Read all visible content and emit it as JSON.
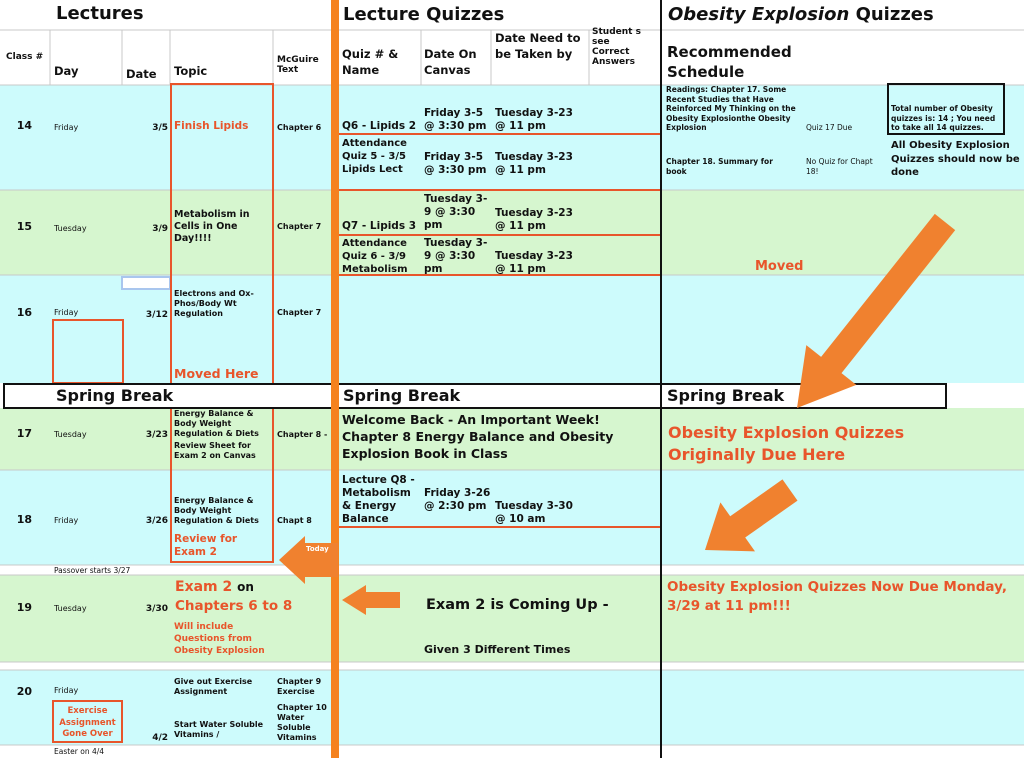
{
  "sections": {
    "lectures": "Lectures",
    "quizzes": "Lecture Quizzes",
    "obesity_italic": "Obesity Explosion",
    "obesity_rest": "Quizzes"
  },
  "headers": {
    "class_no": "Class #",
    "day": "Day",
    "date": "Date",
    "topic": "Topic",
    "text": "McGuire Text",
    "quiz_name": "Quiz # & Name",
    "canvas_date": "Date On Canvas",
    "due_date": "Date Need to be Taken by",
    "answers": "Student s see Correct Answers",
    "schedule": "Recommended Schedule"
  },
  "rows": [
    {
      "class": "14",
      "day": "Friday",
      "date": "3/5",
      "topic": "Finish Lipids",
      "text": "Chapter 6",
      "quizzes": [
        {
          "name": "Q6 - Lipids 2",
          "canvas": "Friday 3-5 @ 3:30 pm",
          "due": "Tuesday 3-23 @ 11 pm"
        },
        {
          "name": "Attendance Quiz 5 - 3/5 Lipids Lect",
          "canvas": "Friday 3-5 @ 3:30 pm",
          "due": "Tuesday 3-23 @ 11 pm"
        }
      ],
      "schedule": {
        "readings": "Readings: Chapter 17.  Some Recent Studies that Have Reinforced My Thinking on the Obesity Explosionthe Obesity Explosion",
        "quiz_due": "Quiz 17 Due",
        "total_note": "Total number of Obesity quizzes is: 14 ; You need to take all 14 quizzes.",
        "chapter18": "Chapter 18.  Summary for book",
        "no_quiz": "No Quiz for Chapt 18!",
        "all_done": "All Obesity Explosion Quizzes should now be done"
      }
    },
    {
      "class": "15",
      "day": "Tuesday",
      "date": "3/9",
      "topic": "Metabolism in Cells in One Day!!!!",
      "text": "Chapter 7",
      "quizzes": [
        {
          "name": "Q7 - Lipids 3",
          "canvas": "Tuesday 3-9 @ 3:30 pm",
          "due": "Tuesday 3-23 @ 11 pm"
        },
        {
          "name": "Attendance Quiz 6 - 3/9 Metabolism",
          "canvas": "Tuesday 3-9 @ 3:30 pm",
          "due": "Tuesday 3-23 @ 11 pm"
        }
      ],
      "schedule_note": "Moved"
    },
    {
      "class": "16",
      "day": "Friday",
      "date": "3/12",
      "topic": "Electrons and Ox-Phos/Body Wt Regulation",
      "text": "Chapter 7",
      "note": "Moved Here"
    },
    {
      "break_labels": [
        "Spring Break",
        "Spring Break",
        "Spring Break"
      ]
    },
    {
      "class": "17",
      "day": "Tuesday",
      "date": "3/23",
      "topic": "Energy Balance & Body Weight Regulation & Diets",
      "topic_note": "Review Sheet for Exam 2 on Canvas",
      "text": "Chapter 8 -",
      "quiz_note": "Welcome Back - An Important Week! Chapter 8 Energy Balance and Obesity Explosion Book in Class",
      "schedule_note": "Obesity Explosion Quizzes Originally Due Here"
    },
    {
      "class": "18",
      "day": "Friday",
      "date": "3/26",
      "topic": "Energy Balance & Body Weight Regulation & Diets",
      "topic_note": "Review for Exam 2",
      "text": "Chapt 8",
      "quizzes": [
        {
          "name": "Lecture Q8 - Metabolism & Energy Balance",
          "canvas": "Friday 3-26 @ 2:30 pm",
          "due": "Tuesday 3-30 @ 10 am"
        }
      ],
      "arrow_label": "Today"
    },
    {
      "note": "Passover starts 3/27"
    },
    {
      "class": "19",
      "day": "Tuesday",
      "date": "3/30",
      "topic_big": "Exam 2",
      "topic_on": "on",
      "topic_chapters": "Chapters 6 to 8",
      "topic_note": "Will include Questions from Obesity Explosion",
      "quiz_note": "Exam 2 is Coming Up -",
      "quiz_sub": "Given 3 Different Times",
      "schedule_note": "Obesity Explosion Quizzes Now Due Monday, 3/29 at 11 pm!!!"
    },
    {
      "class": "20",
      "day": "Friday",
      "date": "4/2",
      "topic": "Give out Exercise Assignment",
      "topic_note": "Start Water Soluble Vitamins /",
      "text": "Chapter 9 Exercise",
      "text2": "Chapter 10 Water Soluble Vitamins",
      "box_note": "Exercise Assignment Gone Over"
    },
    {
      "note": "Easter on 4/4"
    }
  ]
}
